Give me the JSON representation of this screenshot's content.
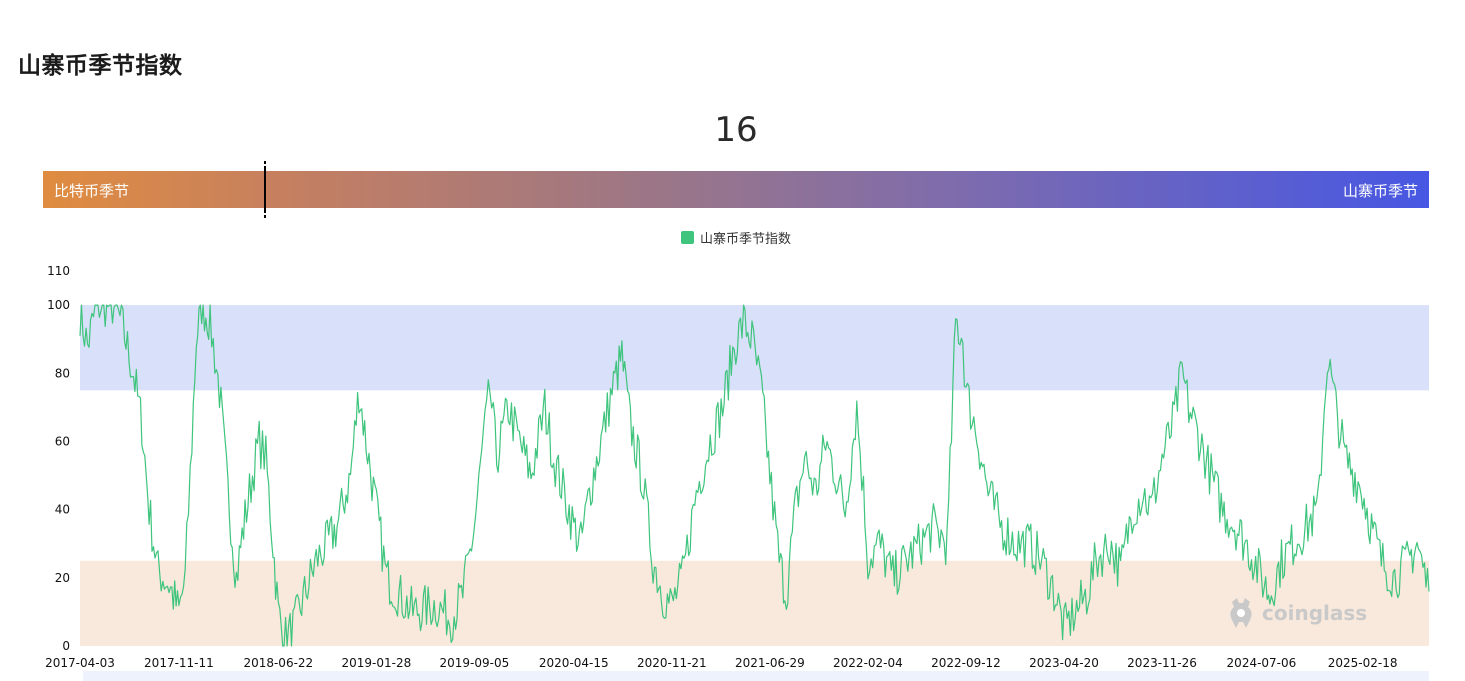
{
  "header": {
    "title": "山寨币季节指数"
  },
  "gauge": {
    "value": "16",
    "value_num": 16,
    "left_label": "比特币季节",
    "right_label": "山寨币季节",
    "gradient_colors": [
      "#e08c40",
      "#9a7688",
      "#4757e3"
    ]
  },
  "watermark": {
    "text": "coinglass"
  },
  "chart_data": {
    "type": "line",
    "title": "",
    "xlabel": "",
    "ylabel": "",
    "ylim": [
      0,
      110
    ],
    "yticks": [
      "0",
      "20",
      "40",
      "60",
      "80",
      "100",
      "110"
    ],
    "xticks": [
      "2017-04-03",
      "2017-11-11",
      "2018-06-22",
      "2019-01-28",
      "2019-09-05",
      "2020-04-15",
      "2020-11-21",
      "2021-06-29",
      "2022-02-04",
      "2022-09-12",
      "2023-04-20",
      "2023-11-26",
      "2024-07-06",
      "2025-02-18"
    ],
    "x_start": "2017-04-03",
    "x_end": "2025-07-17",
    "legend": {
      "position": "top-center"
    },
    "bands": [
      {
        "from": 75,
        "to": 100,
        "color": "#d9e0f9",
        "label": ""
      },
      {
        "from": 0,
        "to": 25,
        "color": "#f9e9dc",
        "label": ""
      }
    ],
    "series": [
      {
        "name": "山寨币季节指数",
        "color": "#3ec47c",
        "points": [
          [
            "2017-04-03",
            98
          ],
          [
            "2017-04-20",
            88
          ],
          [
            "2017-05-10",
            100
          ],
          [
            "2017-06-15",
            100
          ],
          [
            "2017-07-05",
            95
          ],
          [
            "2017-08-01",
            80
          ],
          [
            "2017-08-20",
            65
          ],
          [
            "2017-09-05",
            40
          ],
          [
            "2017-09-25",
            22
          ],
          [
            "2017-10-20",
            18
          ],
          [
            "2017-11-11",
            10
          ],
          [
            "2017-11-25",
            20
          ],
          [
            "2017-12-10",
            60
          ],
          [
            "2017-12-20",
            90
          ],
          [
            "2018-01-01",
            100
          ],
          [
            "2018-01-20",
            95
          ],
          [
            "2018-02-10",
            75
          ],
          [
            "2018-03-01",
            45
          ],
          [
            "2018-03-20",
            20
          ],
          [
            "2018-04-05",
            35
          ],
          [
            "2018-04-25",
            50
          ],
          [
            "2018-05-10",
            60
          ],
          [
            "2018-05-25",
            55
          ],
          [
            "2018-06-10",
            30
          ],
          [
            "2018-06-22",
            10
          ],
          [
            "2018-07-05",
            2
          ],
          [
            "2018-07-25",
            5
          ],
          [
            "2018-08-20",
            15
          ],
          [
            "2018-09-15",
            25
          ],
          [
            "2018-10-10",
            30
          ],
          [
            "2018-11-01",
            35
          ],
          [
            "2018-12-01",
            50
          ],
          [
            "2018-12-20",
            75
          ],
          [
            "2019-01-05",
            60
          ],
          [
            "2019-01-28",
            40
          ],
          [
            "2019-02-20",
            20
          ],
          [
            "2019-03-20",
            15
          ],
          [
            "2019-04-20",
            10
          ],
          [
            "2019-06-10",
            12
          ],
          [
            "2019-07-15",
            8
          ],
          [
            "2019-08-10",
            15
          ],
          [
            "2019-09-05",
            35
          ],
          [
            "2019-09-25",
            60
          ],
          [
            "2019-10-10",
            75
          ],
          [
            "2019-10-25",
            55
          ],
          [
            "2019-11-20",
            70
          ],
          [
            "2019-12-15",
            60
          ],
          [
            "2020-01-10",
            50
          ],
          [
            "2020-02-10",
            70
          ],
          [
            "2020-03-01",
            55
          ],
          [
            "2020-04-15",
            35
          ],
          [
            "2020-05-01",
            30
          ],
          [
            "2020-05-20",
            45
          ],
          [
            "2020-06-15",
            60
          ],
          [
            "2020-07-10",
            75
          ],
          [
            "2020-08-01",
            85
          ],
          [
            "2020-08-20",
            65
          ],
          [
            "2020-09-15",
            50
          ],
          [
            "2020-10-10",
            25
          ],
          [
            "2020-11-01",
            15
          ],
          [
            "2020-11-21",
            12
          ],
          [
            "2020-12-15",
            20
          ],
          [
            "2021-01-15",
            45
          ],
          [
            "2021-02-15",
            60
          ],
          [
            "2021-03-15",
            70
          ],
          [
            "2021-04-10",
            88
          ],
          [
            "2021-05-01",
            95
          ],
          [
            "2021-05-20",
            90
          ],
          [
            "2021-06-10",
            75
          ],
          [
            "2021-06-29",
            50
          ],
          [
            "2021-07-20",
            25
          ],
          [
            "2021-08-05",
            15
          ],
          [
            "2021-08-25",
            40
          ],
          [
            "2021-09-15",
            55
          ],
          [
            "2021-10-10",
            45
          ],
          [
            "2021-11-01",
            60
          ],
          [
            "2021-11-25",
            50
          ],
          [
            "2021-12-15",
            40
          ],
          [
            "2022-01-10",
            70
          ],
          [
            "2022-01-25",
            45
          ],
          [
            "2022-02-04",
            25
          ],
          [
            "2022-03-01",
            30
          ],
          [
            "2022-04-01",
            20
          ],
          [
            "2022-05-01",
            25
          ],
          [
            "2022-06-01",
            30
          ],
          [
            "2022-07-01",
            35
          ],
          [
            "2022-08-01",
            30
          ],
          [
            "2022-08-20",
            95
          ],
          [
            "2022-09-05",
            90
          ],
          [
            "2022-09-12",
            75
          ],
          [
            "2022-10-10",
            60
          ],
          [
            "2022-11-01",
            45
          ],
          [
            "2022-12-01",
            35
          ],
          [
            "2023-01-01",
            30
          ],
          [
            "2023-02-01",
            30
          ],
          [
            "2023-03-01",
            25
          ],
          [
            "2023-04-01",
            15
          ],
          [
            "2023-04-20",
            5
          ],
          [
            "2023-05-15",
            10
          ],
          [
            "2023-06-10",
            15
          ],
          [
            "2023-07-01",
            25
          ],
          [
            "2023-08-01",
            30
          ],
          [
            "2023-08-25",
            22
          ],
          [
            "2023-09-20",
            40
          ],
          [
            "2023-10-15",
            45
          ],
          [
            "2023-11-01",
            40
          ],
          [
            "2023-11-26",
            55
          ],
          [
            "2023-12-20",
            65
          ],
          [
            "2024-01-10",
            80
          ],
          [
            "2024-01-25",
            70
          ],
          [
            "2024-02-20",
            60
          ],
          [
            "2024-03-15",
            50
          ],
          [
            "2024-04-10",
            40
          ],
          [
            "2024-05-10",
            35
          ],
          [
            "2024-06-01",
            30
          ],
          [
            "2024-06-20",
            25
          ],
          [
            "2024-07-06",
            20
          ],
          [
            "2024-07-25",
            15
          ],
          [
            "2024-08-20",
            25
          ],
          [
            "2024-09-15",
            30
          ],
          [
            "2024-10-15",
            35
          ],
          [
            "2024-11-10",
            40
          ],
          [
            "2024-12-01",
            85
          ],
          [
            "2024-12-20",
            70
          ],
          [
            "2025-01-10",
            55
          ],
          [
            "2025-02-01",
            50
          ],
          [
            "2025-02-18",
            45
          ],
          [
            "2025-03-10",
            35
          ],
          [
            "2025-04-01",
            25
          ],
          [
            "2025-05-01",
            20
          ],
          [
            "2025-06-01",
            25
          ],
          [
            "2025-06-20",
            30
          ],
          [
            "2025-07-17",
            16
          ]
        ]
      }
    ]
  }
}
